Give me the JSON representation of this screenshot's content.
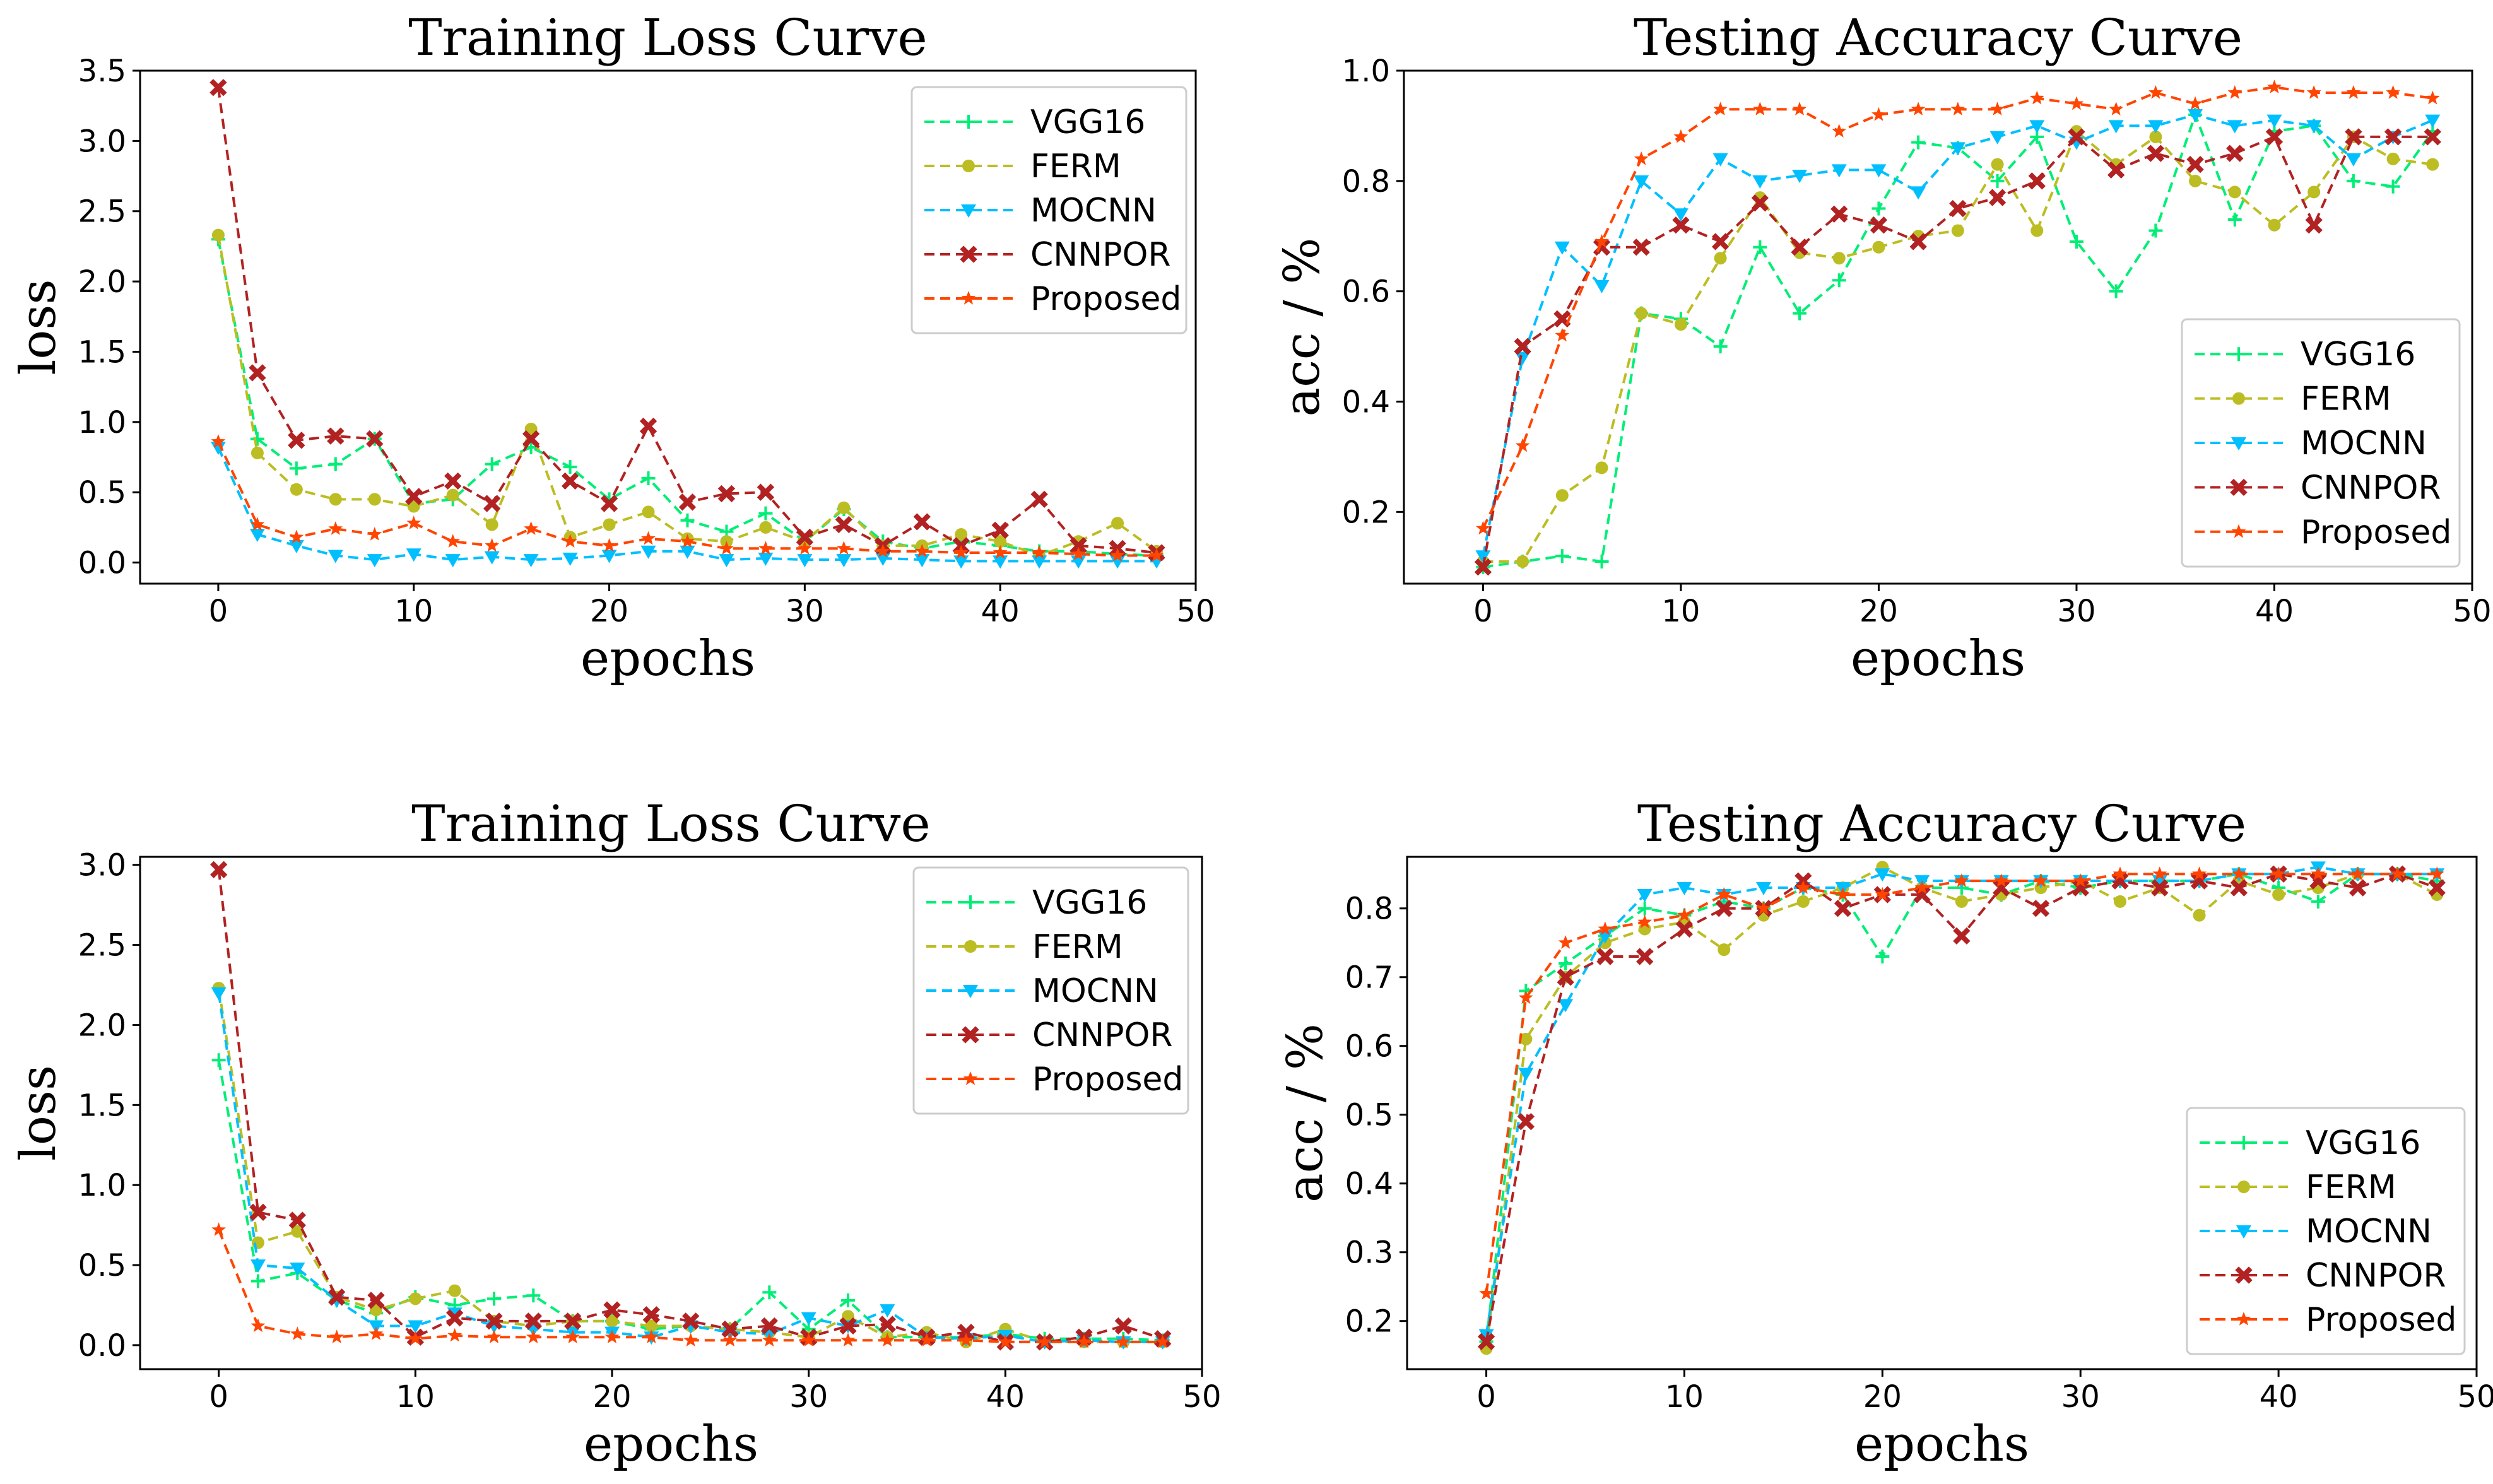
{
  "chart_data": [
    {
      "type": "line",
      "title": "Training Loss Curve",
      "xlabel": "epochs",
      "ylabel": "loss",
      "xlim": [
        -4,
        50
      ],
      "ylim": [
        -0.15,
        3.5
      ],
      "xticks": [
        0,
        10,
        20,
        30,
        40,
        50
      ],
      "yticks": [
        0.0,
        0.5,
        1.0,
        1.5,
        2.0,
        2.5,
        3.0,
        3.5
      ],
      "ytick_labels": [
        "0.0",
        "0.5",
        "1.0",
        "1.5",
        "2.0",
        "2.5",
        "3.0",
        "3.5"
      ],
      "legend_position": "top-right",
      "x": [
        0,
        2,
        4,
        6,
        8,
        10,
        12,
        14,
        16,
        18,
        20,
        22,
        24,
        26,
        28,
        30,
        32,
        34,
        36,
        38,
        40,
        42,
        44,
        46,
        48
      ],
      "series": [
        {
          "name": "VGG16",
          "color": "#00ee76",
          "marker": "plus",
          "values": [
            2.3,
            0.88,
            0.67,
            0.7,
            0.88,
            0.42,
            0.45,
            0.7,
            0.82,
            0.68,
            0.45,
            0.6,
            0.3,
            0.22,
            0.35,
            0.15,
            0.38,
            0.15,
            0.1,
            0.15,
            0.12,
            0.08,
            0.08,
            0.06,
            0.05
          ]
        },
        {
          "name": "FERM",
          "color": "#bcbd22",
          "marker": "circle",
          "values": [
            2.33,
            0.78,
            0.52,
            0.45,
            0.45,
            0.4,
            0.48,
            0.27,
            0.95,
            0.18,
            0.27,
            0.36,
            0.17,
            0.15,
            0.25,
            0.15,
            0.39,
            0.12,
            0.12,
            0.2,
            0.15,
            0.05,
            0.15,
            0.28,
            0.08
          ]
        },
        {
          "name": "MOCNN",
          "color": "#00bfff",
          "marker": "triangle-down",
          "values": [
            0.82,
            0.2,
            0.12,
            0.05,
            0.02,
            0.06,
            0.02,
            0.04,
            0.02,
            0.03,
            0.05,
            0.08,
            0.08,
            0.02,
            0.03,
            0.02,
            0.02,
            0.03,
            0.02,
            0.01,
            0.01,
            0.01,
            0.01,
            0.01,
            0.01
          ]
        },
        {
          "name": "CNNPOR",
          "color": "#b22222",
          "marker": "x",
          "values": [
            3.38,
            1.35,
            0.87,
            0.9,
            0.88,
            0.47,
            0.58,
            0.42,
            0.88,
            0.58,
            0.42,
            0.97,
            0.43,
            0.49,
            0.5,
            0.18,
            0.27,
            0.12,
            0.29,
            0.12,
            0.23,
            0.45,
            0.12,
            0.1,
            0.07
          ]
        },
        {
          "name": "Proposed",
          "color": "#ff4500",
          "marker": "star",
          "values": [
            0.86,
            0.27,
            0.18,
            0.24,
            0.2,
            0.28,
            0.15,
            0.12,
            0.24,
            0.15,
            0.12,
            0.17,
            0.15,
            0.1,
            0.1,
            0.1,
            0.1,
            0.08,
            0.08,
            0.07,
            0.07,
            0.07,
            0.06,
            0.05,
            0.05
          ]
        }
      ]
    },
    {
      "type": "line",
      "title": "Testing Accuracy Curve",
      "xlabel": "epochs",
      "ylabel": "acc / %",
      "xlim": [
        -4,
        50
      ],
      "ylim": [
        0.07,
        1.0
      ],
      "xticks": [
        0,
        10,
        20,
        30,
        40,
        50
      ],
      "yticks": [
        0.2,
        0.4,
        0.6,
        0.8,
        1.0
      ],
      "ytick_labels": [
        "0.2",
        "0.4",
        "0.6",
        "0.8",
        "1.0"
      ],
      "legend_position": "lower-right",
      "x": [
        0,
        2,
        4,
        6,
        8,
        10,
        12,
        14,
        16,
        18,
        20,
        22,
        24,
        26,
        28,
        30,
        32,
        34,
        36,
        38,
        40,
        42,
        44,
        46,
        48
      ],
      "series": [
        {
          "name": "VGG16",
          "color": "#00ee76",
          "marker": "plus",
          "values": [
            0.1,
            0.11,
            0.12,
            0.11,
            0.56,
            0.55,
            0.5,
            0.68,
            0.56,
            0.62,
            0.75,
            0.87,
            0.86,
            0.8,
            0.88,
            0.69,
            0.6,
            0.71,
            0.92,
            0.73,
            0.89,
            0.9,
            0.8,
            0.79,
            0.89
          ]
        },
        {
          "name": "FERM",
          "color": "#bcbd22",
          "marker": "circle",
          "values": [
            0.11,
            0.11,
            0.23,
            0.28,
            0.56,
            0.54,
            0.66,
            0.77,
            0.67,
            0.66,
            0.68,
            0.7,
            0.71,
            0.83,
            0.71,
            0.89,
            0.83,
            0.88,
            0.8,
            0.78,
            0.72,
            0.78,
            0.88,
            0.84,
            0.83
          ]
        },
        {
          "name": "MOCNN",
          "color": "#00bfff",
          "marker": "triangle-down",
          "values": [
            0.12,
            0.48,
            0.68,
            0.61,
            0.8,
            0.74,
            0.84,
            0.8,
            0.81,
            0.82,
            0.82,
            0.78,
            0.86,
            0.88,
            0.9,
            0.87,
            0.9,
            0.9,
            0.92,
            0.9,
            0.91,
            0.9,
            0.84,
            0.88,
            0.91
          ]
        },
        {
          "name": "CNNPOR",
          "color": "#b22222",
          "marker": "x",
          "values": [
            0.1,
            0.5,
            0.55,
            0.68,
            0.68,
            0.72,
            0.69,
            0.76,
            0.68,
            0.74,
            0.72,
            0.69,
            0.75,
            0.77,
            0.8,
            0.88,
            0.82,
            0.85,
            0.83,
            0.85,
            0.88,
            0.72,
            0.88,
            0.88,
            0.88
          ]
        },
        {
          "name": "Proposed",
          "color": "#ff4500",
          "marker": "star",
          "values": [
            0.17,
            0.32,
            0.52,
            0.69,
            0.84,
            0.88,
            0.93,
            0.93,
            0.93,
            0.89,
            0.92,
            0.93,
            0.93,
            0.93,
            0.95,
            0.94,
            0.93,
            0.96,
            0.94,
            0.96,
            0.97,
            0.96,
            0.96,
            0.96,
            0.95
          ]
        }
      ]
    },
    {
      "type": "line",
      "title": "Training Loss Curve",
      "xlabel": "epochs",
      "ylabel": "loss",
      "xlim": [
        -4,
        50
      ],
      "ylim": [
        -0.15,
        3.05
      ],
      "xticks": [
        0,
        10,
        20,
        30,
        40,
        50
      ],
      "yticks": [
        0.0,
        0.5,
        1.0,
        1.5,
        2.0,
        2.5,
        3.0
      ],
      "ytick_labels": [
        "0.0",
        "0.5",
        "1.0",
        "1.5",
        "2.0",
        "2.5",
        "3.0"
      ],
      "legend_position": "top-right",
      "x": [
        0,
        2,
        4,
        6,
        8,
        10,
        12,
        14,
        16,
        18,
        20,
        22,
        24,
        26,
        28,
        30,
        32,
        34,
        36,
        38,
        40,
        42,
        44,
        46,
        48
      ],
      "series": [
        {
          "name": "VGG16",
          "color": "#00ee76",
          "marker": "plus",
          "values": [
            1.78,
            0.4,
            0.45,
            0.28,
            0.2,
            0.3,
            0.25,
            0.29,
            0.31,
            0.15,
            0.15,
            0.1,
            0.12,
            0.1,
            0.33,
            0.1,
            0.28,
            0.05,
            0.05,
            0.05,
            0.07,
            0.04,
            0.04,
            0.04,
            0.03
          ]
        },
        {
          "name": "FERM",
          "color": "#bcbd22",
          "marker": "circle",
          "values": [
            2.23,
            0.64,
            0.71,
            0.3,
            0.22,
            0.29,
            0.34,
            0.15,
            0.12,
            0.15,
            0.15,
            0.12,
            0.12,
            0.1,
            0.08,
            0.05,
            0.18,
            0.05,
            0.08,
            0.02,
            0.1,
            0.02,
            0.02,
            0.02,
            0.02
          ]
        },
        {
          "name": "MOCNN",
          "color": "#00bfff",
          "marker": "triangle-down",
          "values": [
            2.2,
            0.5,
            0.48,
            0.28,
            0.12,
            0.12,
            0.2,
            0.12,
            0.1,
            0.08,
            0.08,
            0.05,
            0.12,
            0.08,
            0.07,
            0.17,
            0.12,
            0.22,
            0.05,
            0.04,
            0.06,
            0.02,
            0.03,
            0.02,
            0.02
          ]
        },
        {
          "name": "CNNPOR",
          "color": "#b22222",
          "marker": "x",
          "values": [
            2.97,
            0.83,
            0.78,
            0.3,
            0.28,
            0.05,
            0.17,
            0.15,
            0.15,
            0.15,
            0.22,
            0.19,
            0.15,
            0.1,
            0.12,
            0.05,
            0.12,
            0.13,
            0.05,
            0.08,
            0.02,
            0.02,
            0.05,
            0.12,
            0.04
          ]
        },
        {
          "name": "Proposed",
          "color": "#ff4500",
          "marker": "star",
          "values": [
            0.72,
            0.12,
            0.07,
            0.05,
            0.07,
            0.04,
            0.06,
            0.05,
            0.05,
            0.05,
            0.05,
            0.05,
            0.03,
            0.03,
            0.03,
            0.03,
            0.03,
            0.03,
            0.03,
            0.03,
            0.02,
            0.02,
            0.02,
            0.02,
            0.02
          ]
        }
      ]
    },
    {
      "type": "line",
      "title": "Testing Accuracy Curve",
      "xlabel": "epochs",
      "ylabel": "acc / %",
      "xlim": [
        -4,
        50
      ],
      "ylim": [
        0.13,
        0.875
      ],
      "xticks": [
        0,
        10,
        20,
        30,
        40,
        50
      ],
      "yticks": [
        0.2,
        0.3,
        0.4,
        0.5,
        0.6,
        0.7,
        0.8
      ],
      "ytick_labels": [
        "0.2",
        "0.3",
        "0.4",
        "0.5",
        "0.6",
        "0.7",
        "0.8"
      ],
      "legend_position": "lower-right",
      "x": [
        0,
        2,
        4,
        6,
        8,
        10,
        12,
        14,
        16,
        18,
        20,
        22,
        24,
        26,
        28,
        30,
        32,
        34,
        36,
        38,
        40,
        42,
        44,
        46,
        48
      ],
      "series": [
        {
          "name": "VGG16",
          "color": "#00ee76",
          "marker": "plus",
          "values": [
            0.17,
            0.68,
            0.72,
            0.76,
            0.8,
            0.79,
            0.81,
            0.8,
            0.83,
            0.82,
            0.73,
            0.83,
            0.83,
            0.82,
            0.84,
            0.83,
            0.84,
            0.84,
            0.84,
            0.85,
            0.83,
            0.81,
            0.85,
            0.85,
            0.84
          ]
        },
        {
          "name": "FERM",
          "color": "#bcbd22",
          "marker": "circle",
          "values": [
            0.16,
            0.61,
            0.7,
            0.75,
            0.77,
            0.78,
            0.74,
            0.79,
            0.81,
            0.83,
            0.86,
            0.83,
            0.81,
            0.82,
            0.83,
            0.84,
            0.81,
            0.83,
            0.79,
            0.84,
            0.82,
            0.83,
            0.85,
            0.85,
            0.82
          ]
        },
        {
          "name": "MOCNN",
          "color": "#00bfff",
          "marker": "triangle-down",
          "values": [
            0.18,
            0.56,
            0.66,
            0.76,
            0.82,
            0.83,
            0.82,
            0.83,
            0.83,
            0.83,
            0.85,
            0.84,
            0.84,
            0.84,
            0.84,
            0.84,
            0.84,
            0.84,
            0.84,
            0.85,
            0.85,
            0.86,
            0.85,
            0.85,
            0.85
          ]
        },
        {
          "name": "CNNPOR",
          "color": "#b22222",
          "marker": "x",
          "values": [
            0.17,
            0.49,
            0.7,
            0.73,
            0.73,
            0.77,
            0.8,
            0.8,
            0.84,
            0.8,
            0.82,
            0.82,
            0.76,
            0.83,
            0.8,
            0.83,
            0.84,
            0.83,
            0.84,
            0.83,
            0.85,
            0.84,
            0.83,
            0.85,
            0.83
          ]
        },
        {
          "name": "Proposed",
          "color": "#ff4500",
          "marker": "star",
          "values": [
            0.24,
            0.67,
            0.75,
            0.77,
            0.78,
            0.79,
            0.82,
            0.8,
            0.83,
            0.82,
            0.82,
            0.83,
            0.84,
            0.84,
            0.84,
            0.84,
            0.85,
            0.85,
            0.85,
            0.85,
            0.85,
            0.85,
            0.85,
            0.85,
            0.85
          ]
        }
      ]
    }
  ]
}
